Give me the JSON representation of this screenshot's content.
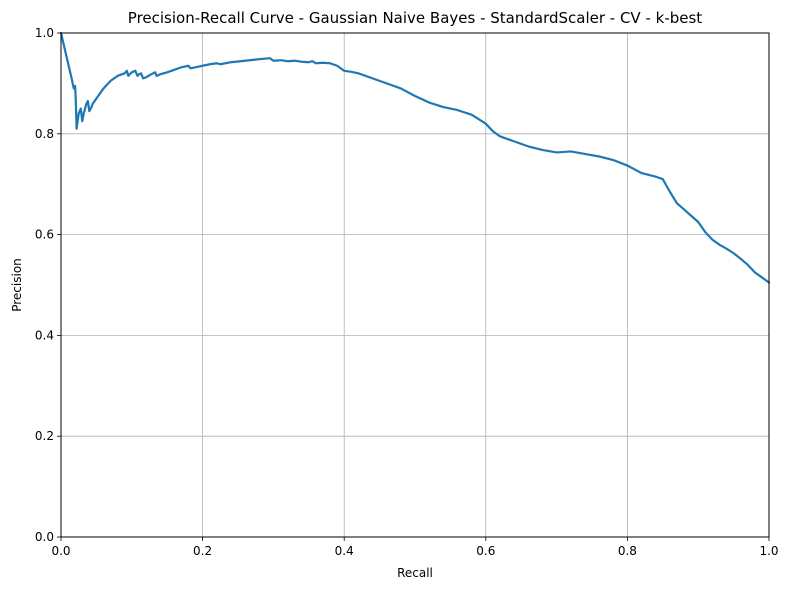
{
  "chart_data": {
    "type": "line",
    "title": "Precision-Recall Curve - Gaussian Naive Bayes - StandardScaler - CV - k-best",
    "xlabel": "Recall",
    "ylabel": "Precision",
    "xlim": [
      0,
      1
    ],
    "ylim": [
      0,
      1
    ],
    "grid": true,
    "x_ticks": [
      "0.0",
      "0.2",
      "0.4",
      "0.6",
      "0.8",
      "1.0"
    ],
    "y_ticks": [
      "0.0",
      "0.2",
      "0.4",
      "0.6",
      "0.8",
      "1.0"
    ],
    "series": [
      {
        "color": "#1f77b4",
        "x": [
          0.0,
          0.005,
          0.01,
          0.015,
          0.018,
          0.02,
          0.021,
          0.022,
          0.023,
          0.024,
          0.025,
          0.028,
          0.03,
          0.032,
          0.034,
          0.036,
          0.038,
          0.04,
          0.042,
          0.045,
          0.05,
          0.06,
          0.07,
          0.08,
          0.09,
          0.093,
          0.095,
          0.097,
          0.1,
          0.105,
          0.108,
          0.11,
          0.113,
          0.116,
          0.12,
          0.125,
          0.13,
          0.133,
          0.135,
          0.14,
          0.15,
          0.16,
          0.17,
          0.18,
          0.183,
          0.19,
          0.2,
          0.21,
          0.22,
          0.225,
          0.24,
          0.26,
          0.28,
          0.295,
          0.3,
          0.31,
          0.32,
          0.33,
          0.34,
          0.35,
          0.355,
          0.36,
          0.37,
          0.38,
          0.39,
          0.395,
          0.4,
          0.41,
          0.42,
          0.44,
          0.46,
          0.48,
          0.5,
          0.52,
          0.54,
          0.56,
          0.58,
          0.6,
          0.61,
          0.62,
          0.64,
          0.66,
          0.68,
          0.7,
          0.72,
          0.74,
          0.76,
          0.78,
          0.8,
          0.82,
          0.84,
          0.85,
          0.86,
          0.87,
          0.88,
          0.9,
          0.91,
          0.92,
          0.93,
          0.94,
          0.95,
          0.96,
          0.97,
          0.98,
          0.99,
          1.0
        ],
        "y": [
          1.0,
          0.97,
          0.94,
          0.91,
          0.89,
          0.895,
          0.86,
          0.81,
          0.82,
          0.83,
          0.84,
          0.85,
          0.825,
          0.84,
          0.85,
          0.86,
          0.865,
          0.845,
          0.85,
          0.86,
          0.87,
          0.89,
          0.905,
          0.915,
          0.92,
          0.925,
          0.915,
          0.918,
          0.922,
          0.925,
          0.915,
          0.918,
          0.92,
          0.91,
          0.912,
          0.916,
          0.92,
          0.922,
          0.915,
          0.918,
          0.922,
          0.927,
          0.932,
          0.935,
          0.93,
          0.932,
          0.935,
          0.938,
          0.94,
          0.938,
          0.942,
          0.945,
          0.948,
          0.95,
          0.945,
          0.946,
          0.944,
          0.945,
          0.943,
          0.942,
          0.944,
          0.94,
          0.941,
          0.94,
          0.935,
          0.93,
          0.925,
          0.923,
          0.92,
          0.91,
          0.9,
          0.89,
          0.875,
          0.862,
          0.853,
          0.847,
          0.838,
          0.82,
          0.805,
          0.795,
          0.785,
          0.775,
          0.768,
          0.763,
          0.765,
          0.76,
          0.755,
          0.748,
          0.737,
          0.722,
          0.715,
          0.71,
          0.685,
          0.662,
          0.65,
          0.625,
          0.605,
          0.59,
          0.58,
          0.572,
          0.563,
          0.552,
          0.54,
          0.525,
          0.515,
          0.505
        ]
      }
    ]
  }
}
